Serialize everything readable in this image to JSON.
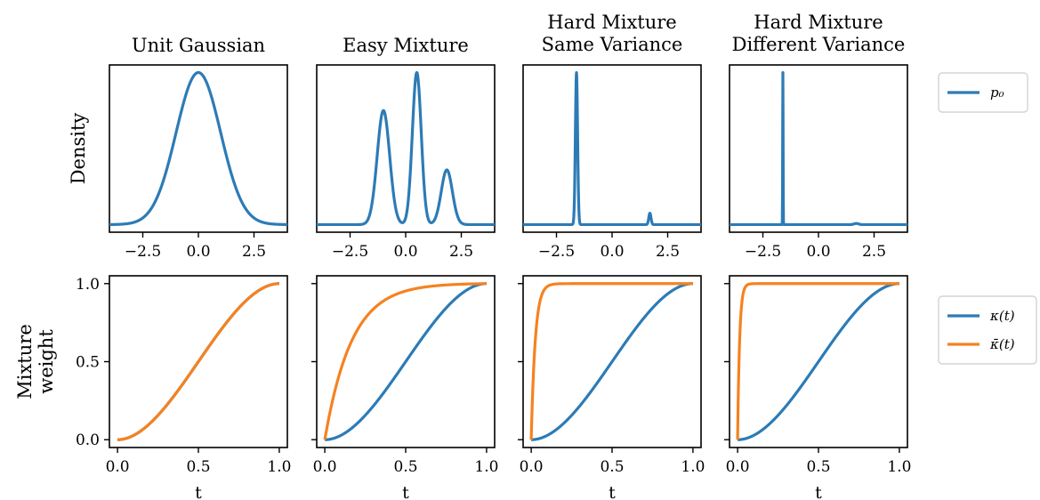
{
  "colors": {
    "blue": "#2C7BB6",
    "orange": "#F58220",
    "axis": "#000000",
    "legend_border": "#cccccc"
  },
  "chart_data": [
    {
      "type": "line",
      "panel": "top",
      "title": "Unit Gaussian",
      "ylabel": "Density",
      "xlim": [
        -4,
        4
      ],
      "xticks": [
        -2.5,
        0.0,
        2.5
      ],
      "xtick_labels": [
        "−2.5",
        "0.0",
        "2.5"
      ],
      "series": [
        {
          "name": "p₀",
          "color": "#2C7BB6",
          "components": [
            {
              "weight": 1.0,
              "mean": 0.0,
              "std": 1.0
            }
          ]
        }
      ]
    },
    {
      "type": "line",
      "panel": "top",
      "title": "Easy Mixture",
      "xlim": [
        -4,
        4
      ],
      "xticks": [
        -2.5,
        0.0,
        2.5
      ],
      "xtick_labels": [
        "−2.5",
        "0.0",
        "2.5"
      ],
      "series": [
        {
          "name": "p₀",
          "color": "#2C7BB6",
          "components": [
            {
              "weight": 0.42,
              "mean": -1.0,
              "std": 0.28
            },
            {
              "weight": 0.4,
              "mean": 0.5,
              "std": 0.2
            },
            {
              "weight": 0.18,
              "mean": 1.85,
              "std": 0.25
            }
          ]
        }
      ]
    },
    {
      "type": "line",
      "panel": "top",
      "title": "Hard Mixture\nSame Variance",
      "xlim": [
        -4,
        4
      ],
      "xticks": [
        -2.5,
        0.0,
        2.5
      ],
      "xtick_labels": [
        "−2.5",
        "0.0",
        "2.5"
      ],
      "series": [
        {
          "name": "p₀",
          "color": "#2C7BB6",
          "components": [
            {
              "weight": 0.93,
              "mean": -1.6,
              "std": 0.05
            },
            {
              "weight": 0.07,
              "mean": 1.7,
              "std": 0.05
            }
          ]
        }
      ]
    },
    {
      "type": "line",
      "panel": "top",
      "title": "Hard Mixture\nDifferent Variance",
      "xlim": [
        -4,
        4
      ],
      "xticks": [
        -2.5,
        0.0,
        2.5
      ],
      "xtick_labels": [
        "−2.5",
        "0.0",
        "2.5"
      ],
      "series": [
        {
          "name": "p₀",
          "color": "#2C7BB6",
          "components": [
            {
              "weight": 0.93,
              "mean": -1.6,
              "std": 0.01
            },
            {
              "weight": 0.07,
              "mean": 1.7,
              "std": 0.1
            }
          ]
        }
      ]
    },
    {
      "type": "line",
      "panel": "bottom",
      "ylabel": "Mixture\nweight",
      "xlabel": "t",
      "xlim": [
        -0.05,
        1.05
      ],
      "ylim": [
        -0.05,
        1.05
      ],
      "xticks": [
        0.0,
        0.5,
        1.0
      ],
      "xtick_labels": [
        "0.0",
        "0.5",
        "1.0"
      ],
      "yticks": [
        0.0,
        0.5,
        1.0
      ],
      "ytick_labels": [
        "0.0",
        "0.5",
        "1.0"
      ],
      "series": [
        {
          "name": "κ(t)",
          "color": "#2C7BB6",
          "curve": "smoothstep"
        },
        {
          "name": "κ̄(t)",
          "color": "#F58220",
          "curve": "smoothstep"
        }
      ]
    },
    {
      "type": "line",
      "panel": "bottom",
      "xlabel": "t",
      "xlim": [
        -0.05,
        1.05
      ],
      "ylim": [
        -0.05,
        1.05
      ],
      "xticks": [
        0.0,
        0.5,
        1.0
      ],
      "xtick_labels": [
        "0.0",
        "0.5",
        "1.0"
      ],
      "series": [
        {
          "name": "κ(t)",
          "color": "#2C7BB6",
          "curve": "smoothstep"
        },
        {
          "name": "κ̄(t)",
          "color": "#F58220",
          "curve": "saturating",
          "rate": 6
        }
      ]
    },
    {
      "type": "line",
      "panel": "bottom",
      "xlabel": "t",
      "xlim": [
        -0.05,
        1.05
      ],
      "ylim": [
        -0.05,
        1.05
      ],
      "xticks": [
        0.0,
        0.5,
        1.0
      ],
      "xtick_labels": [
        "0.0",
        "0.5",
        "1.0"
      ],
      "series": [
        {
          "name": "κ(t)",
          "color": "#2C7BB6",
          "curve": "smoothstep"
        },
        {
          "name": "κ̄(t)",
          "color": "#F58220",
          "curve": "saturating",
          "rate": 40
        }
      ]
    },
    {
      "type": "line",
      "panel": "bottom",
      "xlabel": "t",
      "xlim": [
        -0.05,
        1.05
      ],
      "ylim": [
        -0.05,
        1.05
      ],
      "xticks": [
        0.0,
        0.5,
        1.0
      ],
      "xtick_labels": [
        "0.0",
        "0.5",
        "1.0"
      ],
      "series": [
        {
          "name": "κ(t)",
          "color": "#2C7BB6",
          "curve": "smoothstep"
        },
        {
          "name": "κ̄(t)",
          "color": "#F58220",
          "curve": "saturating",
          "rate": 80
        }
      ]
    }
  ],
  "legends": {
    "top": [
      {
        "label": "p₀",
        "color": "#2C7BB6"
      }
    ],
    "bottom": [
      {
        "label": "κ(t)",
        "color": "#2C7BB6"
      },
      {
        "label": "κ̄(t)",
        "color": "#F58220"
      }
    ]
  }
}
